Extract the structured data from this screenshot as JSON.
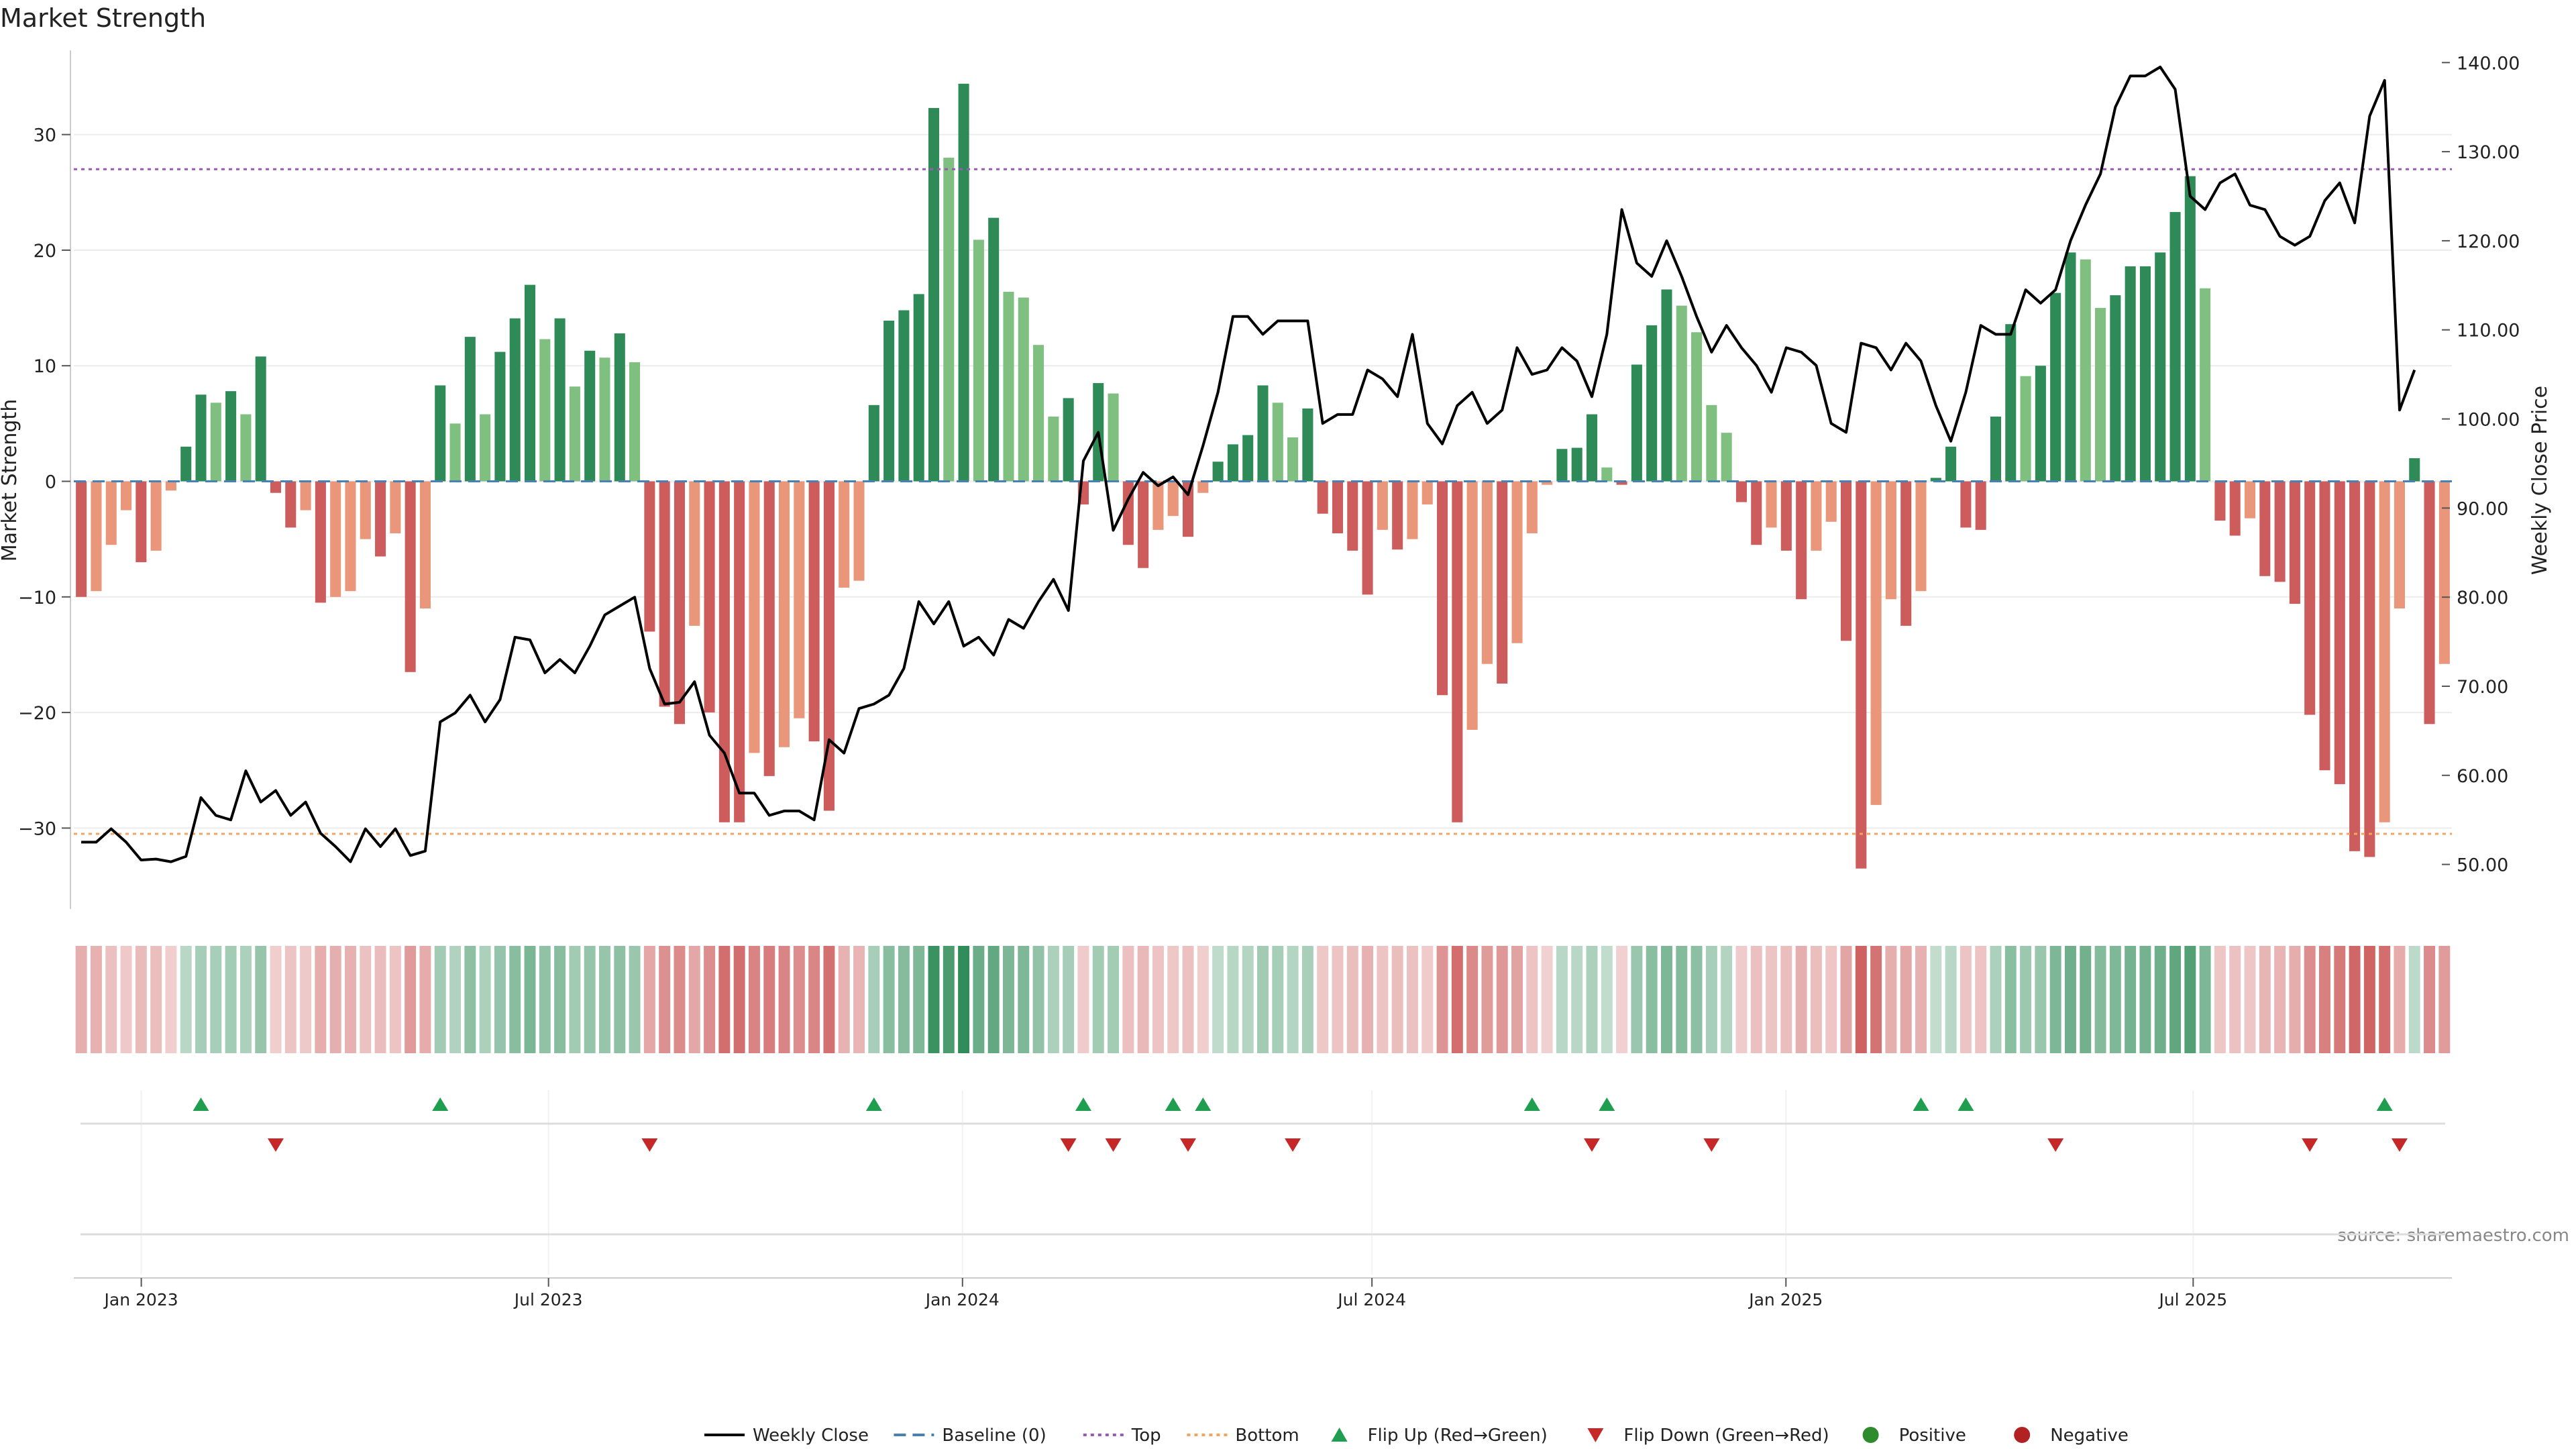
{
  "title": "Market Strength",
  "source": "source: sharemaestro.com",
  "colors": {
    "pos_strong": "#2e8b57",
    "pos_weak": "#7fbf7f",
    "neg_strong": "#cd5c5c",
    "neg_weak": "#e9967a",
    "top_line": "#9b59b6",
    "bottom_line": "#f4a460",
    "baseline": "#4682b4",
    "price_line": "#000000",
    "flip_up": "#1e9e4e",
    "flip_down": "#c62828",
    "positive_dot": "#2e8b2e",
    "negative_dot": "#b22222"
  },
  "chart_data": {
    "type": "bar",
    "title": "Market Strength",
    "ylabel": "Market Strength",
    "y2label": "Weekly Close Price",
    "ylim": [
      -37,
      37
    ],
    "y2lim": [
      45,
      141
    ],
    "yticks": [
      -30,
      -20,
      -10,
      0,
      10,
      20,
      30
    ],
    "y2ticks": [
      "50.00",
      "60.00",
      "70.00",
      "80.00",
      "90.00",
      "100.00",
      "110.00",
      "120.00",
      "130.00",
      "140.00"
    ],
    "x_start": "2022-12-02",
    "x_end": "2025-10-24",
    "xticks": [
      {
        "date": "2023-01-01",
        "label": "Jan 2023"
      },
      {
        "date": "2023-07-01",
        "label": "Jul 2023"
      },
      {
        "date": "2024-01-01",
        "label": "Jan 2024"
      },
      {
        "date": "2024-07-01",
        "label": "Jul 2024"
      },
      {
        "date": "2025-01-01",
        "label": "Jan 2025"
      },
      {
        "date": "2025-07-01",
        "label": "Jul 2025"
      }
    ],
    "top_level": 27,
    "bottom_level": -30.5,
    "strength": [
      -10,
      -9.5,
      -5.5,
      -2.5,
      -7,
      -6,
      -0.8,
      3,
      7.5,
      6.8,
      7.8,
      5.8,
      10.8,
      -1,
      -4,
      -2.5,
      -10.5,
      -10,
      -9.5,
      -5,
      -6.5,
      -4.5,
      -16.5,
      -11,
      8.3,
      5,
      12.5,
      5.8,
      11.2,
      14.1,
      17,
      12.3,
      14.1,
      8.2,
      11.3,
      10.7,
      12.8,
      10.3,
      -13,
      -19.5,
      -21,
      -12.5,
      -20,
      -29.5,
      -29.5,
      -23.5,
      -25.5,
      -23,
      -20.5,
      -22.5,
      -28.5,
      -9.2,
      -8.6,
      6.6,
      13.9,
      14.8,
      16.2,
      32.3,
      28,
      34.4,
      20.9,
      22.8,
      16.4,
      15.9,
      11.8,
      5.6,
      7.2,
      -2,
      8.5,
      7.6,
      -5.5,
      -7.5,
      -4.2,
      -3,
      -4.8,
      -1,
      1.7,
      3.2,
      4,
      8.3,
      6.8,
      3.8,
      6.3,
      -2.8,
      -4.5,
      -6,
      -9.8,
      -4.2,
      -5.9,
      -5,
      -2,
      -18.5,
      -29.5,
      -21.5,
      -15.8,
      -17.5,
      -14,
      -4.5,
      -0.3,
      2.8,
      2.9,
      5.8,
      1.2,
      -0.3,
      10.1,
      13.5,
      16.6,
      15.2,
      12.9,
      6.6,
      4.2,
      -1.8,
      -5.5,
      -4,
      -6,
      -10.2,
      -6,
      -3.5,
      -13.8,
      -33.5,
      -28,
      -10.2,
      -12.5,
      -9.5,
      0.3,
      3,
      -4,
      -4.2,
      5.6,
      13.6,
      9.1,
      10,
      16.3,
      19.8,
      19.2,
      15,
      16.1,
      18.6,
      18.6,
      19.8,
      23.3,
      26.4,
      16.7,
      -3.4,
      -4.7,
      -3.2,
      -8.2,
      -8.7,
      -10.6,
      -20.2,
      -25,
      -26.2,
      -32,
      -32.5,
      -29.5,
      -11,
      2,
      -21,
      -15.8
    ],
    "price": [
      52.5,
      52.5,
      54.0,
      52.5,
      50.5,
      50.6,
      50.3,
      50.9,
      57.5,
      55.5,
      55.0,
      60.5,
      57.0,
      58.3,
      55.5,
      57.0,
      53.5,
      52.0,
      50.3,
      54.0,
      52.0,
      54.0,
      51.0,
      51.5,
      66.0,
      67.0,
      69.0,
      66.0,
      68.5,
      75.5,
      75.2,
      71.5,
      73.0,
      71.5,
      74.5,
      78.0,
      79.0,
      80.0,
      72.0,
      68.0,
      68.2,
      70.5,
      64.5,
      62.5,
      58.0,
      58.0,
      55.5,
      56.0,
      56.0,
      55.0,
      64.0,
      62.5,
      67.5,
      68.0,
      69.0,
      72.0,
      79.5,
      77.0,
      79.5,
      74.5,
      75.5,
      73.5,
      77.5,
      76.5,
      79.5,
      82.0,
      78.5,
      95.3,
      98.5,
      87.5,
      91.0,
      94.0,
      92.5,
      93.5,
      91.5,
      97.0,
      103.0,
      111.5,
      111.5,
      109.5,
      111.0,
      111.0,
      111.0,
      99.5,
      100.5,
      100.5,
      105.5,
      104.5,
      102.5,
      109.5,
      99.5,
      97.2,
      101.5,
      103.0,
      99.5,
      101.0,
      108.0,
      105.0,
      105.5,
      108.0,
      106.5,
      102.5,
      109.5,
      123.5,
      117.5,
      116.0,
      120.0,
      116.0,
      111.5,
      107.5,
      110.5,
      108.0,
      106.0,
      103.0,
      108.0,
      107.5,
      106.0,
      99.5,
      98.5,
      108.5,
      108.0,
      105.5,
      108.5,
      106.5,
      101.5,
      97.5,
      103.0,
      110.5,
      109.5,
      109.5,
      114.5,
      113.0,
      114.5,
      120.0,
      124.0,
      127.5,
      135.0,
      138.5,
      138.5,
      139.5,
      137.0,
      125.0,
      123.5,
      126.5,
      127.5,
      124.0,
      123.5,
      120.5,
      119.5,
      120.5,
      124.5,
      126.5,
      122.0,
      134.0,
      138.0,
      101.0,
      105.5
    ],
    "flips_up": [
      8,
      24,
      53,
      67,
      73,
      75,
      97,
      102,
      123,
      126,
      154
    ],
    "flips_down": [
      13,
      38,
      66,
      69,
      74,
      81,
      101,
      109,
      132,
      149,
      155
    ],
    "legend": [
      {
        "label": "Weekly Close",
        "kind": "line-solid"
      },
      {
        "label": "Baseline (0)",
        "kind": "line-dash"
      },
      {
        "label": "Top",
        "kind": "line-dot"
      },
      {
        "label": "Bottom",
        "kind": "line-dot-orange"
      },
      {
        "label": "Flip Up (Red→Green)",
        "kind": "tri-up"
      },
      {
        "label": "Flip Down (Green→Red)",
        "kind": "tri-down"
      },
      {
        "label": "Positive",
        "kind": "dot-green"
      },
      {
        "label": "Negative",
        "kind": "dot-red"
      }
    ],
    "legend_placement": "bottom-center",
    "grid": true
  }
}
